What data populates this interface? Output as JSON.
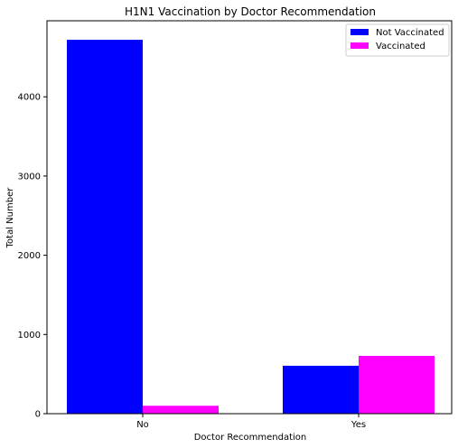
{
  "chart_data": {
    "type": "bar",
    "title": "H1N1 Vaccination by Doctor Recommendation",
    "xlabel": "Doctor Recommendation",
    "ylabel": "Total Number",
    "categories": [
      "No",
      "Yes"
    ],
    "series": [
      {
        "name": "Not Vaccinated",
        "values": [
          4720,
          605
        ],
        "color": "#0000ff"
      },
      {
        "name": "Vaccinated",
        "values": [
          100,
          730
        ],
        "color": "#ff00ff"
      }
    ],
    "ylim": [
      0,
      4960
    ],
    "yticks": [
      0,
      1000,
      2000,
      3000,
      4000
    ],
    "grid": false,
    "legend": "top-right"
  }
}
